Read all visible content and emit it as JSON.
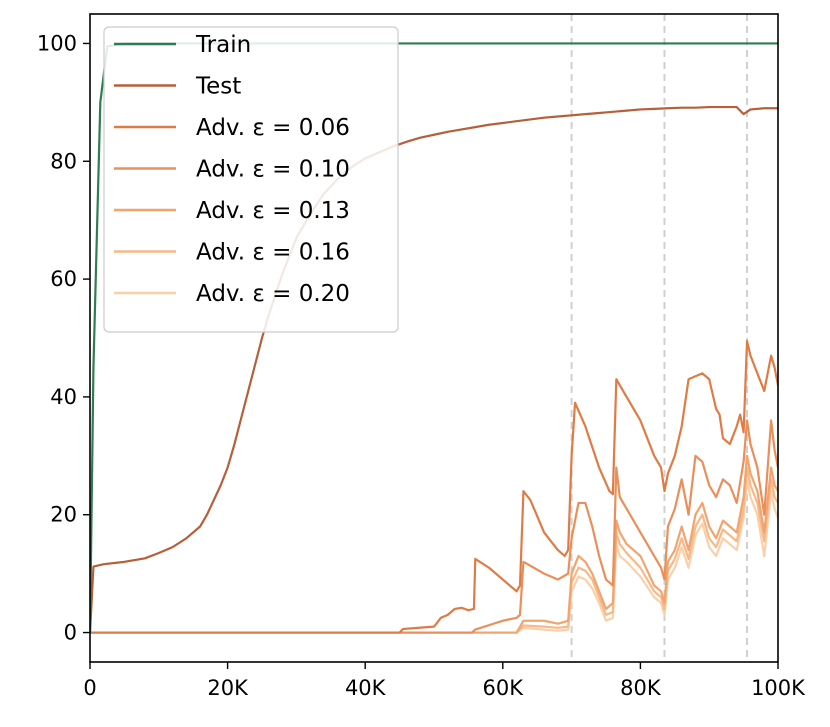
{
  "chart_data": {
    "type": "line",
    "title": "",
    "xlabel": "",
    "ylabel": "",
    "xlim": [
      0,
      100000
    ],
    "ylim": [
      -5,
      105
    ],
    "x_ticks": [
      {
        "value": 0,
        "label": "0"
      },
      {
        "value": 20000,
        "label": "20K"
      },
      {
        "value": 40000,
        "label": "40K"
      },
      {
        "value": 60000,
        "label": "60K"
      },
      {
        "value": 80000,
        "label": "80K"
      },
      {
        "value": 100000,
        "label": "100K"
      }
    ],
    "y_ticks": [
      {
        "value": 0,
        "label": "0"
      },
      {
        "value": 20,
        "label": "20"
      },
      {
        "value": 40,
        "label": "40"
      },
      {
        "value": 60,
        "label": "60"
      },
      {
        "value": 80,
        "label": "80"
      },
      {
        "value": 100,
        "label": "100"
      }
    ],
    "grid": false,
    "legend_position": "top-left",
    "vertical_reference_lines": [
      70000,
      83500,
      95500
    ],
    "series": [
      {
        "name": "Train",
        "color": "#2e7d4f",
        "x": [
          0,
          500,
          1500,
          2500,
          5000,
          20000,
          40000,
          60000,
          80000,
          100000
        ],
        "y": [
          0,
          45,
          90,
          99.5,
          100,
          100,
          100,
          100,
          100,
          100
        ]
      },
      {
        "name": "Test",
        "color": "#b5603a",
        "x": [
          0,
          500,
          2000,
          5000,
          8000,
          10000,
          12000,
          14000,
          16000,
          17000,
          18000,
          19000,
          20000,
          21000,
          22000,
          23000,
          24000,
          25000,
          26000,
          27000,
          28000,
          29000,
          30000,
          32000,
          34000,
          36000,
          38000,
          40000,
          42000,
          44000,
          46000,
          48000,
          50000,
          52000,
          54000,
          56000,
          58000,
          60000,
          62000,
          64000,
          66000,
          68000,
          70000,
          72000,
          74000,
          76000,
          78000,
          80000,
          82000,
          84000,
          86000,
          88000,
          90000,
          92000,
          94000,
          95000,
          96000,
          98000,
          100000
        ],
        "y": [
          0,
          11.2,
          11.6,
          12.0,
          12.6,
          13.5,
          14.5,
          16.0,
          18.0,
          20.0,
          22.5,
          25.0,
          28.0,
          32.0,
          36.5,
          41.0,
          45.5,
          50.0,
          54.0,
          57.5,
          61.0,
          64.0,
          67.0,
          71.0,
          74.5,
          77.0,
          79.0,
          80.5,
          81.5,
          82.5,
          83.3,
          84.0,
          84.5,
          85.0,
          85.4,
          85.8,
          86.2,
          86.5,
          86.8,
          87.1,
          87.4,
          87.6,
          87.8,
          88.0,
          88.2,
          88.4,
          88.6,
          88.8,
          88.9,
          89.0,
          89.1,
          89.1,
          89.2,
          89.2,
          89.2,
          88.0,
          88.8,
          89.0,
          89.0
        ]
      },
      {
        "name": "Adv. ε = 0.06",
        "color": "#e07b45",
        "x": [
          0,
          45000,
          45500,
          50000,
          51000,
          52000,
          53000,
          54000,
          55000,
          55800,
          56000,
          58000,
          60000,
          61000,
          62000,
          62500,
          63000,
          64000,
          66000,
          68000,
          69000,
          69500,
          70000,
          70500,
          72000,
          74000,
          75500,
          76000,
          76500,
          78000,
          80000,
          82000,
          83000,
          83500,
          84000,
          85000,
          86000,
          87000,
          88000,
          89000,
          90000,
          91000,
          91500,
          92000,
          93000,
          94000,
          94500,
          95000,
          95500,
          96000,
          97000,
          98000,
          99000,
          99500,
          100000
        ],
        "y": [
          0,
          0,
          0.6,
          1.0,
          2.5,
          3.0,
          4.0,
          4.2,
          3.8,
          4.0,
          12.5,
          11.0,
          9.0,
          8.0,
          7.0,
          8.0,
          24.0,
          22.5,
          17.0,
          14.0,
          13.0,
          14.0,
          30.0,
          39.0,
          35.0,
          28.0,
          24.0,
          23.5,
          43.0,
          40.0,
          36.0,
          30.0,
          28.0,
          24.0,
          27.0,
          30.0,
          35.0,
          43.0,
          43.5,
          44.0,
          43.0,
          38.0,
          37.0,
          33.0,
          32.0,
          35.0,
          37.0,
          34.0,
          49.5,
          47.0,
          44.0,
          41.0,
          47.0,
          45.0,
          42.0
        ]
      },
      {
        "name": "Adv. ε = 0.10",
        "color": "#ea8f59",
        "x": [
          0,
          55500,
          56000,
          60000,
          62000,
          62500,
          63000,
          66000,
          68000,
          69500,
          70000,
          71000,
          72000,
          73000,
          74000,
          75000,
          76000,
          76500,
          77000,
          78000,
          80000,
          82000,
          83000,
          83500,
          84000,
          85000,
          86000,
          87000,
          88000,
          89000,
          90000,
          91000,
          92000,
          93000,
          94000,
          95000,
          95500,
          96000,
          97000,
          98000,
          99000,
          99500,
          100000
        ],
        "y": [
          0,
          0,
          0.5,
          2.0,
          2.5,
          3.0,
          12.0,
          10.0,
          9.0,
          10.0,
          16.0,
          22.0,
          22.0,
          18.0,
          13.0,
          9.0,
          8.0,
          28.0,
          23.0,
          21.0,
          17.0,
          13.0,
          11.0,
          9.0,
          18.0,
          21.0,
          26.0,
          20.0,
          30.0,
          29.0,
          25.0,
          23.0,
          26.0,
          25.0,
          22.0,
          29.0,
          36.0,
          32.0,
          28.0,
          20.0,
          36.0,
          31.0,
          28.0
        ]
      },
      {
        "name": "Adv. ε = 0.13",
        "color": "#f2a46e",
        "x": [
          0,
          62000,
          63000,
          66000,
          68000,
          69500,
          70000,
          71000,
          72000,
          73000,
          74000,
          75000,
          76000,
          76500,
          77000,
          78000,
          80000,
          82000,
          83000,
          83500,
          84000,
          85000,
          86000,
          87000,
          88000,
          89000,
          90000,
          91000,
          92000,
          93000,
          94000,
          95000,
          95500,
          96000,
          97000,
          98000,
          99000,
          99500,
          100000
        ],
        "y": [
          0,
          0,
          2.0,
          2.0,
          1.5,
          2.0,
          10.0,
          13.0,
          12.0,
          10.0,
          7.0,
          4.0,
          5.0,
          19.0,
          17.0,
          15.0,
          13.0,
          8.0,
          7.0,
          5.0,
          12.0,
          14.0,
          18.0,
          14.0,
          20.0,
          22.0,
          18.0,
          16.0,
          19.0,
          18.0,
          17.0,
          23.0,
          30.0,
          27.0,
          24.0,
          17.0,
          28.0,
          25.0,
          24.0
        ]
      },
      {
        "name": "Adv. ε = 0.16",
        "color": "#f7b988",
        "x": [
          0,
          62000,
          63000,
          66000,
          68000,
          69500,
          70000,
          71000,
          72000,
          73000,
          74000,
          75000,
          76000,
          76500,
          77000,
          78000,
          80000,
          82000,
          83000,
          83500,
          84000,
          85000,
          86000,
          87000,
          88000,
          89000,
          90000,
          91000,
          92000,
          93000,
          94000,
          95000,
          95500,
          96000,
          97000,
          98000,
          99000,
          99500,
          100000
        ],
        "y": [
          0,
          0,
          1.2,
          1.0,
          0.8,
          1.0,
          8.5,
          11.0,
          10.5,
          9.0,
          6.0,
          3.0,
          3.5,
          17.0,
          15.0,
          13.5,
          11.0,
          7.0,
          6.0,
          4.0,
          10.5,
          12.5,
          16.0,
          12.5,
          18.0,
          20.0,
          16.0,
          14.5,
          17.5,
          16.5,
          15.5,
          21.0,
          28.0,
          25.0,
          22.0,
          15.5,
          26.0,
          23.0,
          22.0
        ]
      },
      {
        "name": "Adv. ε = 0.20",
        "color": "#fbcfa8",
        "x": [
          0,
          62000,
          63000,
          66000,
          68000,
          69500,
          70000,
          71000,
          72000,
          73000,
          74000,
          75000,
          76000,
          76500,
          77000,
          78000,
          80000,
          82000,
          83000,
          83500,
          84000,
          85000,
          86000,
          87000,
          88000,
          89000,
          90000,
          91000,
          92000,
          93000,
          94000,
          95000,
          95500,
          96000,
          97000,
          98000,
          99000,
          99500,
          100000
        ],
        "y": [
          0,
          0,
          0.8,
          0.5,
          0.3,
          0.5,
          7.0,
          9.5,
          9.0,
          7.5,
          5.0,
          2.0,
          2.5,
          15.0,
          13.0,
          12.0,
          9.5,
          6.0,
          5.0,
          3.0,
          9.0,
          11.0,
          14.5,
          11.0,
          16.5,
          18.5,
          14.5,
          13.0,
          16.0,
          15.0,
          14.0,
          19.5,
          26.0,
          23.0,
          20.0,
          13.0,
          24.0,
          21.0,
          19.5
        ]
      }
    ]
  }
}
